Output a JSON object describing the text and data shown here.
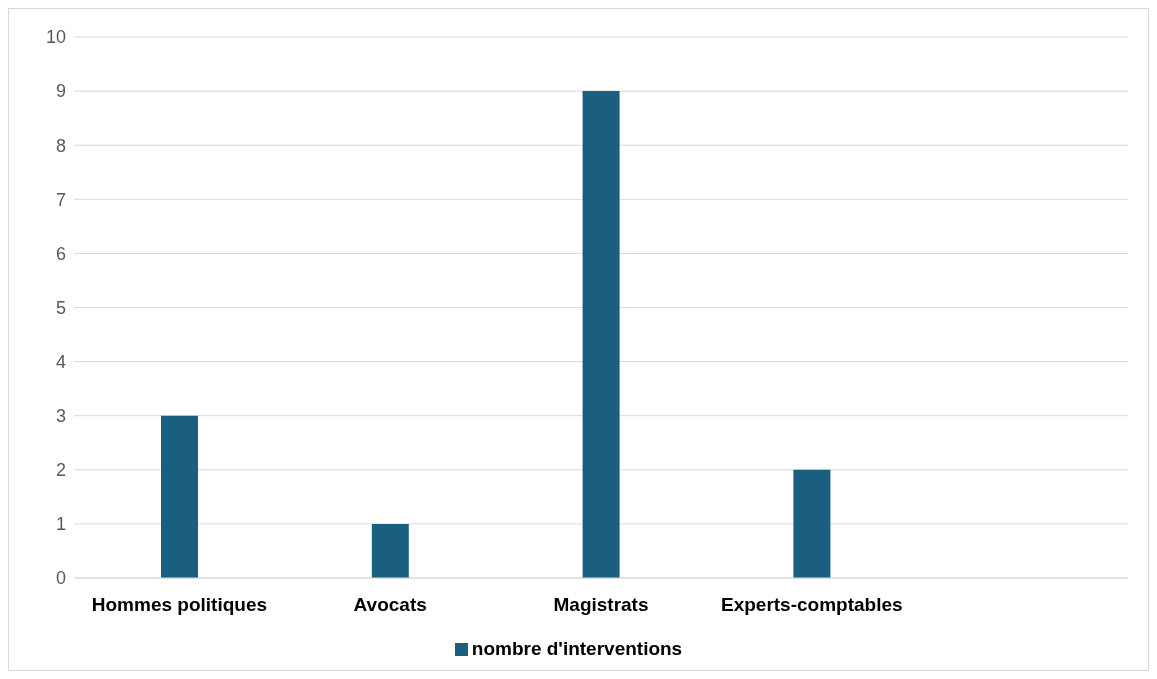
{
  "chart_data": {
    "type": "bar",
    "categories": [
      "Hommes politiques",
      "Avocats",
      "Magistrats",
      "Experts-comptables",
      null
    ],
    "series": [
      {
        "name": "nombre d'interventions",
        "color": "#1a5f80",
        "values": [
          3,
          1,
          9,
          2,
          null
        ]
      }
    ],
    "ylim": [
      0,
      10
    ],
    "yticks": [
      0,
      1,
      2,
      3,
      4,
      5,
      6,
      7,
      8,
      9,
      10
    ],
    "grid": "y",
    "legend": "bottom"
  }
}
